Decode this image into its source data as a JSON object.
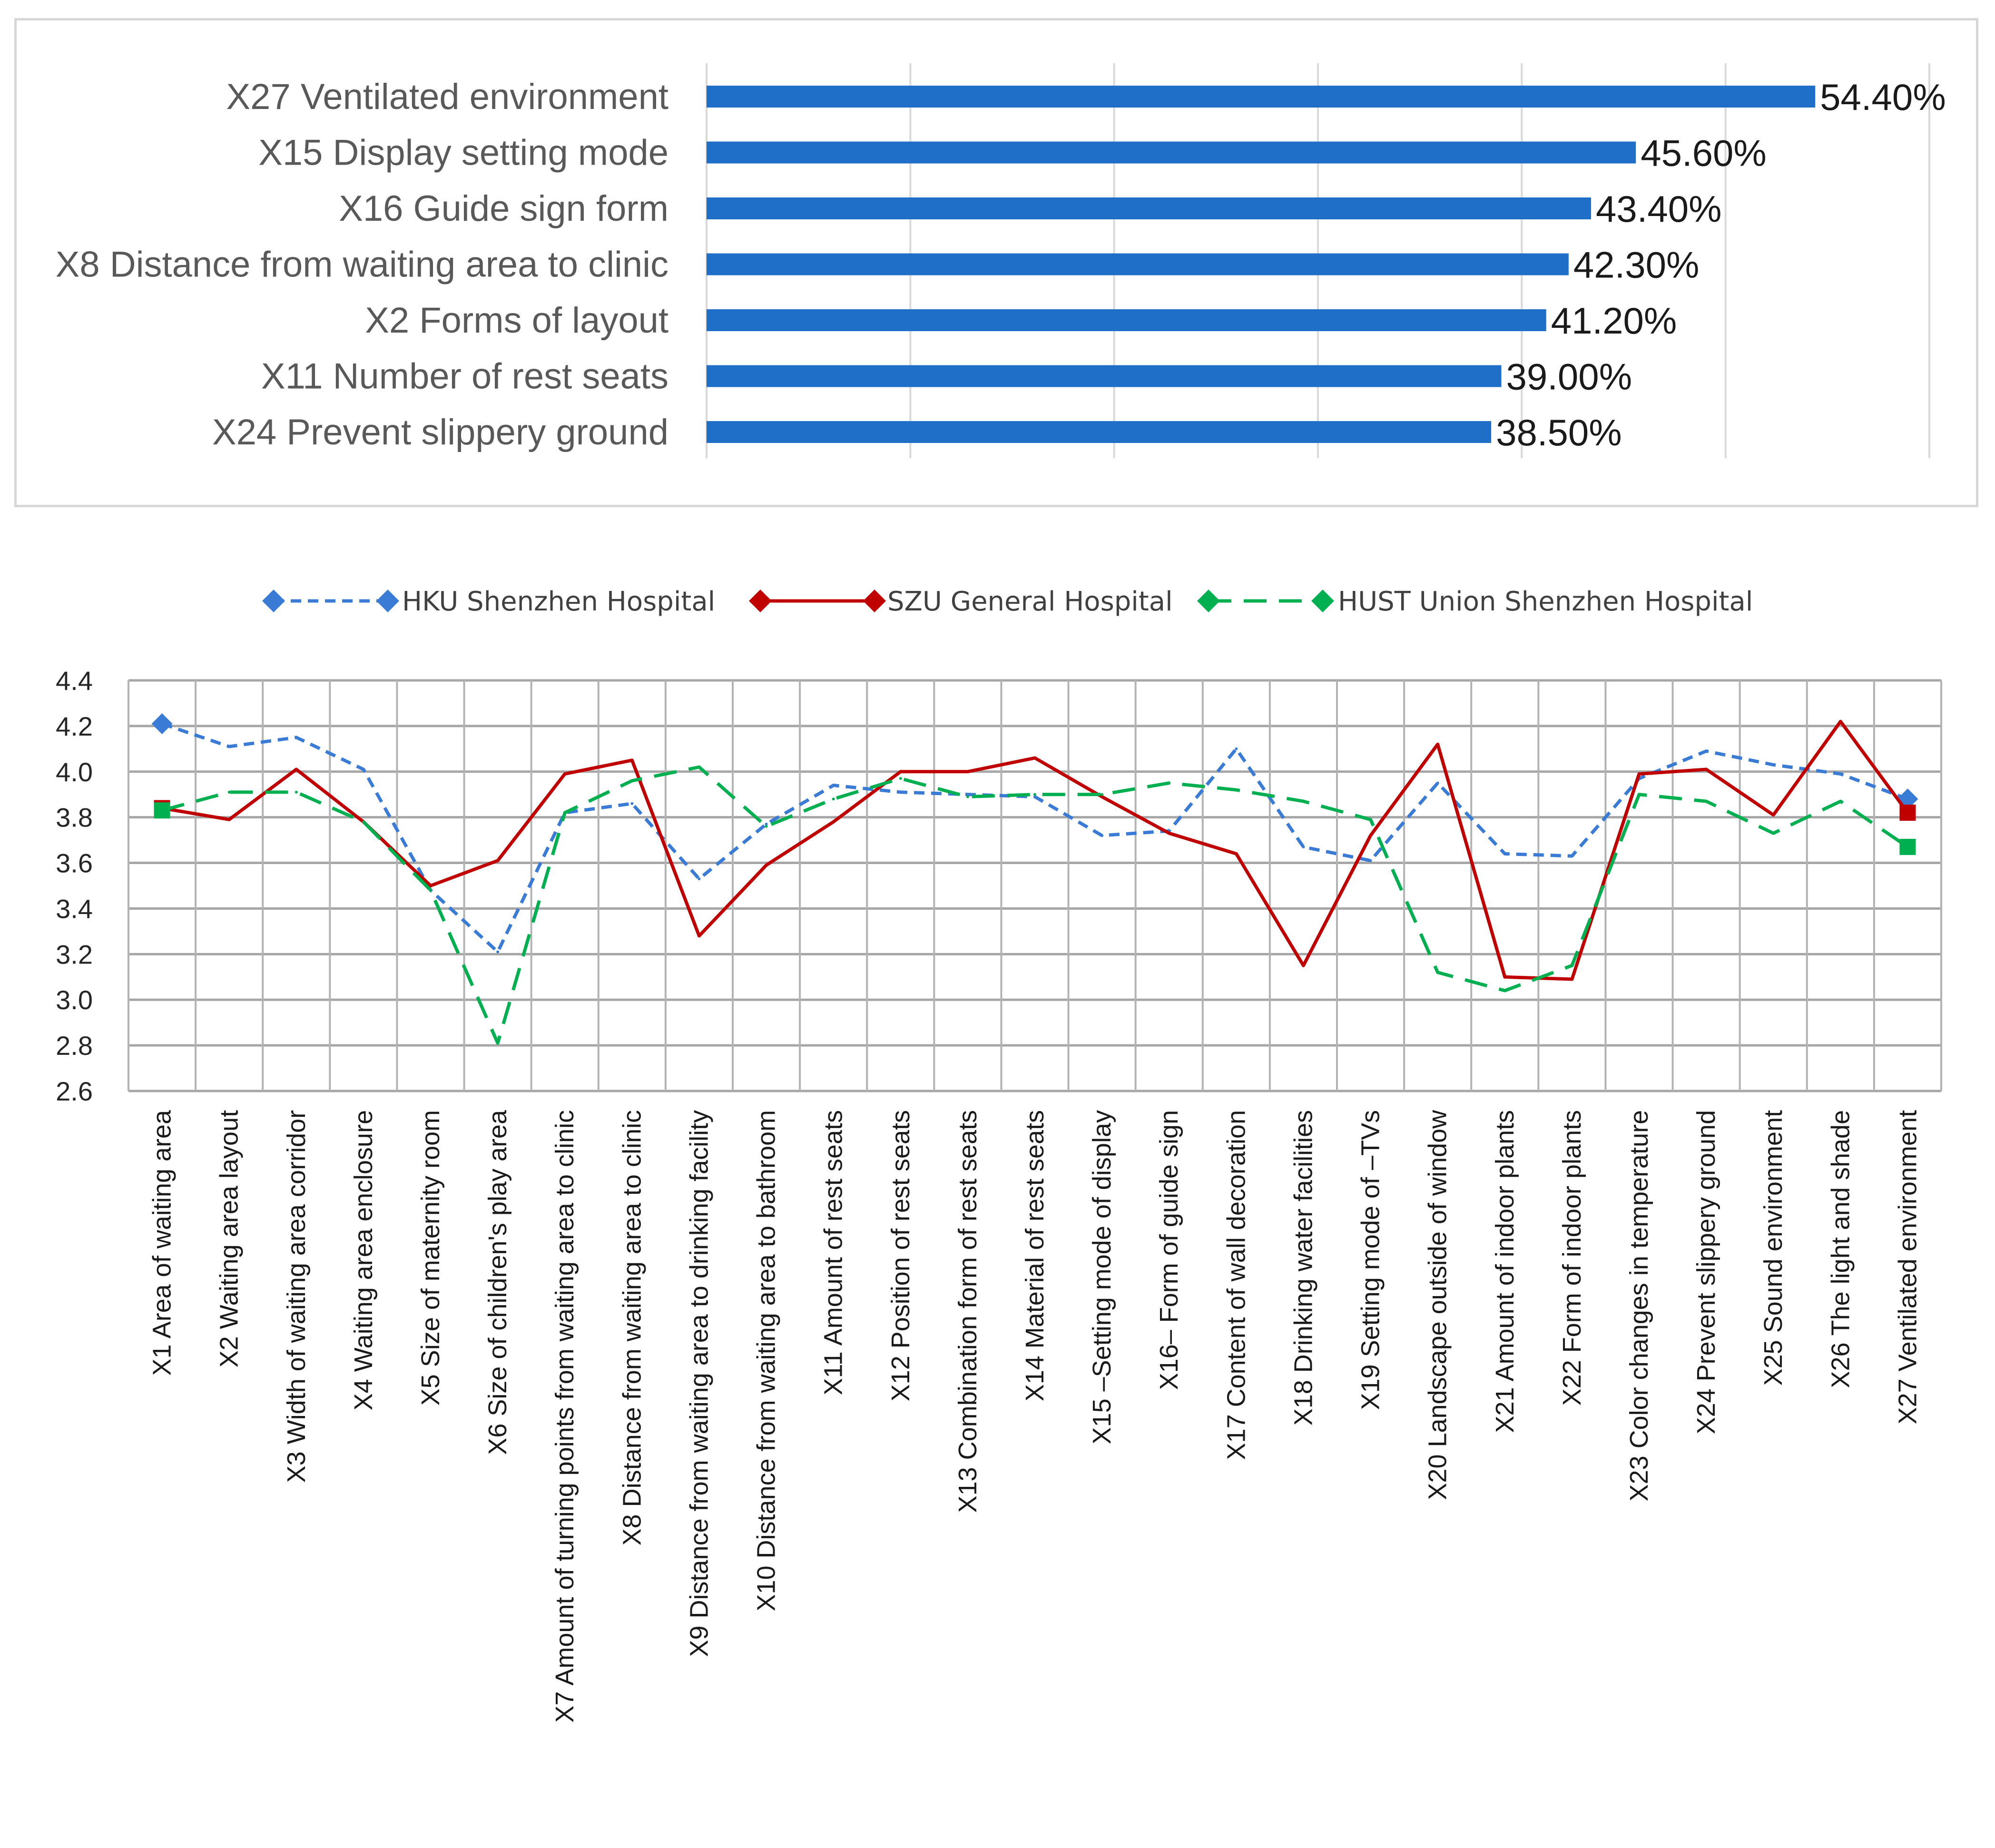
{
  "chart_data": [
    {
      "type": "bar",
      "orientation": "horizontal",
      "categories": [
        "X27 Ventilated environment",
        "X15 Display setting mode",
        "X16 Guide sign form",
        "X8 Distance from waiting area to clinic",
        "X2 Forms of layout",
        "X11 Number of rest seats",
        "X24 Prevent slippery ground"
      ],
      "values": [
        54.4,
        45.6,
        43.4,
        42.3,
        41.2,
        39.0,
        38.5
      ],
      "value_labels": [
        "54.40%",
        "45.60%",
        "43.40%",
        "42.30%",
        "41.20%",
        "39.00%",
        "38.50%"
      ],
      "xlim": [
        0,
        60
      ],
      "grid": true,
      "color": "#1f6fc8"
    },
    {
      "type": "line",
      "categories": [
        "X1 Area of waiting area",
        "X2 Waiting area layout",
        "X3 Width of waiting area corridor",
        "X4 Waiting area enclosure",
        "X5 Size of maternity room",
        "X6 Size of children's play area",
        "X7 Amount of turning points from waiting area to clinic",
        "X8 Distance from waiting area to clinic",
        "X9 Distance from waiting area to drinking facility",
        "X10 Distance from waiting area to bathroom",
        "X11 Amount of rest seats",
        "X12 Position of rest seats",
        "X13 Combination form of rest seats",
        "X14 Material of rest seats",
        "X15 –Setting mode of display",
        "X16– Form of guide sign",
        "X17 Content of wall decoration",
        "X18 Drinking water facilities",
        "X19 Setting mode of –TVs",
        "X20 Landscape outside of window",
        "X21 Amount of indoor plants",
        "X22 Form of indoor plants",
        "X23 Color changes in temperature",
        "X24 Prevent slippery ground",
        "X25 Sound environment",
        "X26 The light and shade",
        "X27 Ventilated environment"
      ],
      "series": [
        {
          "name": "HKU Shenzhen Hospital",
          "color": "#3a7bd5",
          "dash": "short",
          "values": [
            4.21,
            4.11,
            4.15,
            4.01,
            3.48,
            3.21,
            3.82,
            3.86,
            3.53,
            3.77,
            3.94,
            3.91,
            3.9,
            3.89,
            3.72,
            3.74,
            4.1,
            3.67,
            3.61,
            3.95,
            3.64,
            3.63,
            3.97,
            4.09,
            4.03,
            3.99,
            3.88
          ]
        },
        {
          "name": "SZU General Hospital",
          "color": "#c00000",
          "dash": "solid",
          "values": [
            3.84,
            3.79,
            4.01,
            3.78,
            3.5,
            3.61,
            3.99,
            4.05,
            3.28,
            3.59,
            3.78,
            4.0,
            4.0,
            4.06,
            3.89,
            3.73,
            3.64,
            3.15,
            3.72,
            4.12,
            3.1,
            3.09,
            3.99,
            4.01,
            3.81,
            4.22,
            3.82
          ]
        },
        {
          "name": "HUST Union Shenzhen Hospital",
          "color": "#00b050",
          "dash": "long",
          "values": [
            3.83,
            3.91,
            3.91,
            3.78,
            3.48,
            2.81,
            3.82,
            3.96,
            4.02,
            3.76,
            3.88,
            3.97,
            3.89,
            3.9,
            3.9,
            3.95,
            3.92,
            3.87,
            3.79,
            3.12,
            3.04,
            3.15,
            3.9,
            3.87,
            3.73,
            3.87,
            3.67
          ]
        }
      ],
      "ylim": [
        2.6,
        4.4
      ],
      "yticks": [
        "2.6",
        "2.8",
        "3.0",
        "3.2",
        "3.4",
        "3.6",
        "3.8",
        "4.0",
        "4.2",
        "4.4"
      ],
      "grid": true,
      "legend": "top"
    }
  ]
}
